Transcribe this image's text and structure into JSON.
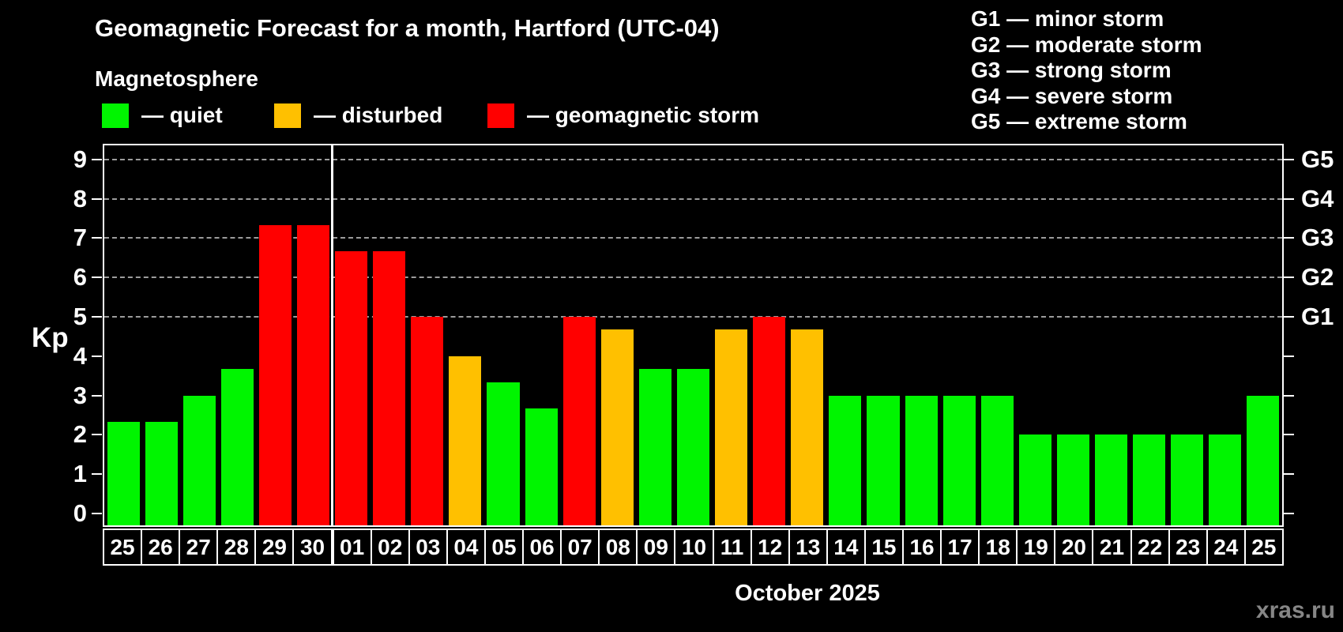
{
  "title": "Geomagnetic Forecast for a month, Hartford (UTC-04)",
  "subtitle": "Magnetosphere",
  "legend": {
    "quiet_label": "— quiet",
    "disturbed_label": "— disturbed",
    "storm_label": "— geomagnetic storm"
  },
  "g_scale_legend": {
    "g1": "G1 — minor storm",
    "g2": "G2 — moderate storm",
    "g3": "G3 — strong storm",
    "g4": "G4 — severe storm",
    "g5": "G5 — extreme storm"
  },
  "month_label": "October 2025",
  "watermark": "xras.ru",
  "colors": {
    "background": "#000000",
    "quiet": "#00f500",
    "disturbed": "#ffc000",
    "storm": "#ff0000",
    "axis": "#ffffff",
    "grid": "#9c9c9c",
    "watermark": "#868686"
  },
  "chart_data": {
    "type": "bar",
    "title": "Geomagnetic Forecast for a month, Hartford (UTC-04)",
    "subtitle": "Magnetosphere",
    "xlabel": "October 2025",
    "ylabel": "Kp",
    "ylim": [
      0,
      9.4
    ],
    "yticks": [
      0,
      1,
      2,
      3,
      4,
      5,
      6,
      7,
      8,
      9
    ],
    "grid": "dashed horizontal lines at Kp 5-9 only",
    "gridlines_at": [
      5,
      6,
      7,
      8,
      9
    ],
    "right_axis_labels": [
      {
        "kp": 5,
        "label": "G1"
      },
      {
        "kp": 6,
        "label": "G2"
      },
      {
        "kp": 7,
        "label": "G3"
      },
      {
        "kp": 8,
        "label": "G4"
      },
      {
        "kp": 9,
        "label": "G5"
      }
    ],
    "legend_position": "top-left",
    "month_separator_after_index": 5,
    "categories": [
      "25",
      "26",
      "27",
      "28",
      "29",
      "30",
      "01",
      "02",
      "03",
      "04",
      "05",
      "06",
      "07",
      "08",
      "09",
      "10",
      "11",
      "12",
      "13",
      "14",
      "15",
      "16",
      "17",
      "18",
      "19",
      "20",
      "21",
      "22",
      "23",
      "24",
      "25"
    ],
    "values": [
      2.33,
      2.33,
      3,
      3.67,
      7.33,
      7.33,
      6.67,
      6.67,
      5,
      4,
      3.33,
      2.67,
      5,
      4.67,
      3.67,
      3.67,
      4.67,
      5,
      4.67,
      3,
      3,
      3,
      3,
      3,
      2,
      2,
      2,
      2,
      2,
      2,
      3
    ],
    "statuses": [
      "quiet",
      "quiet",
      "quiet",
      "quiet",
      "storm",
      "storm",
      "storm",
      "storm",
      "storm",
      "disturbed",
      "quiet",
      "quiet",
      "storm",
      "disturbed",
      "quiet",
      "quiet",
      "disturbed",
      "storm",
      "disturbed",
      "quiet",
      "quiet",
      "quiet",
      "quiet",
      "quiet",
      "quiet",
      "quiet",
      "quiet",
      "quiet",
      "quiet",
      "quiet",
      "quiet"
    ]
  }
}
